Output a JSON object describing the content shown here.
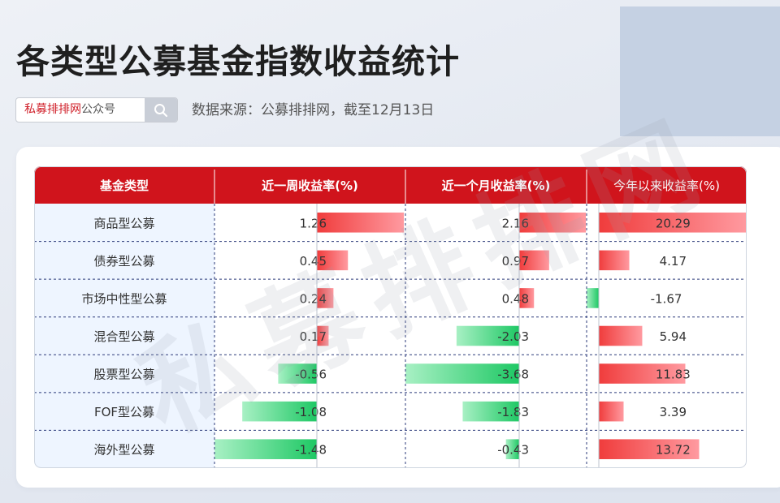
{
  "header": {
    "title": "各类型公募基金指数收益统计",
    "search_brand": "私募排排网",
    "search_suffix": "公众号",
    "source": "数据来源：公募排排网，截至12月13日"
  },
  "watermark": "私募排排网",
  "colors": {
    "header_red": "#d0141c",
    "positive": "#f04848",
    "negative": "#22cc66",
    "grid_dash": "#2b3a7a",
    "first_col_bg": "#eef5ff"
  },
  "chart_data": {
    "type": "table",
    "columns": [
      "基金类型",
      "近一周收益率(%)",
      "近一个月收益率(%)",
      "今年以来收益率(%)"
    ],
    "rows": [
      {
        "category": "商品型公募",
        "week": "1.26",
        "month": "2.16",
        "ytd": "20.29"
      },
      {
        "category": "债券型公募",
        "week": "0.45",
        "month": "0.97",
        "ytd": "4.17"
      },
      {
        "category": "市场中性型公募",
        "week": "0.24",
        "month": "0.48",
        "ytd": "-1.67"
      },
      {
        "category": "混合型公募",
        "week": "0.17",
        "month": "-2.03",
        "ytd": "5.94"
      },
      {
        "category": "股票型公募",
        "week": "-0.56",
        "month": "-3.68",
        "ytd": "11.83"
      },
      {
        "category": "FOF型公募",
        "week": "-1.08",
        "month": "-1.83",
        "ytd": "3.39"
      },
      {
        "category": "海外型公募",
        "week": "-1.48",
        "month": "-0.43",
        "ytd": "13.72"
      }
    ]
  }
}
